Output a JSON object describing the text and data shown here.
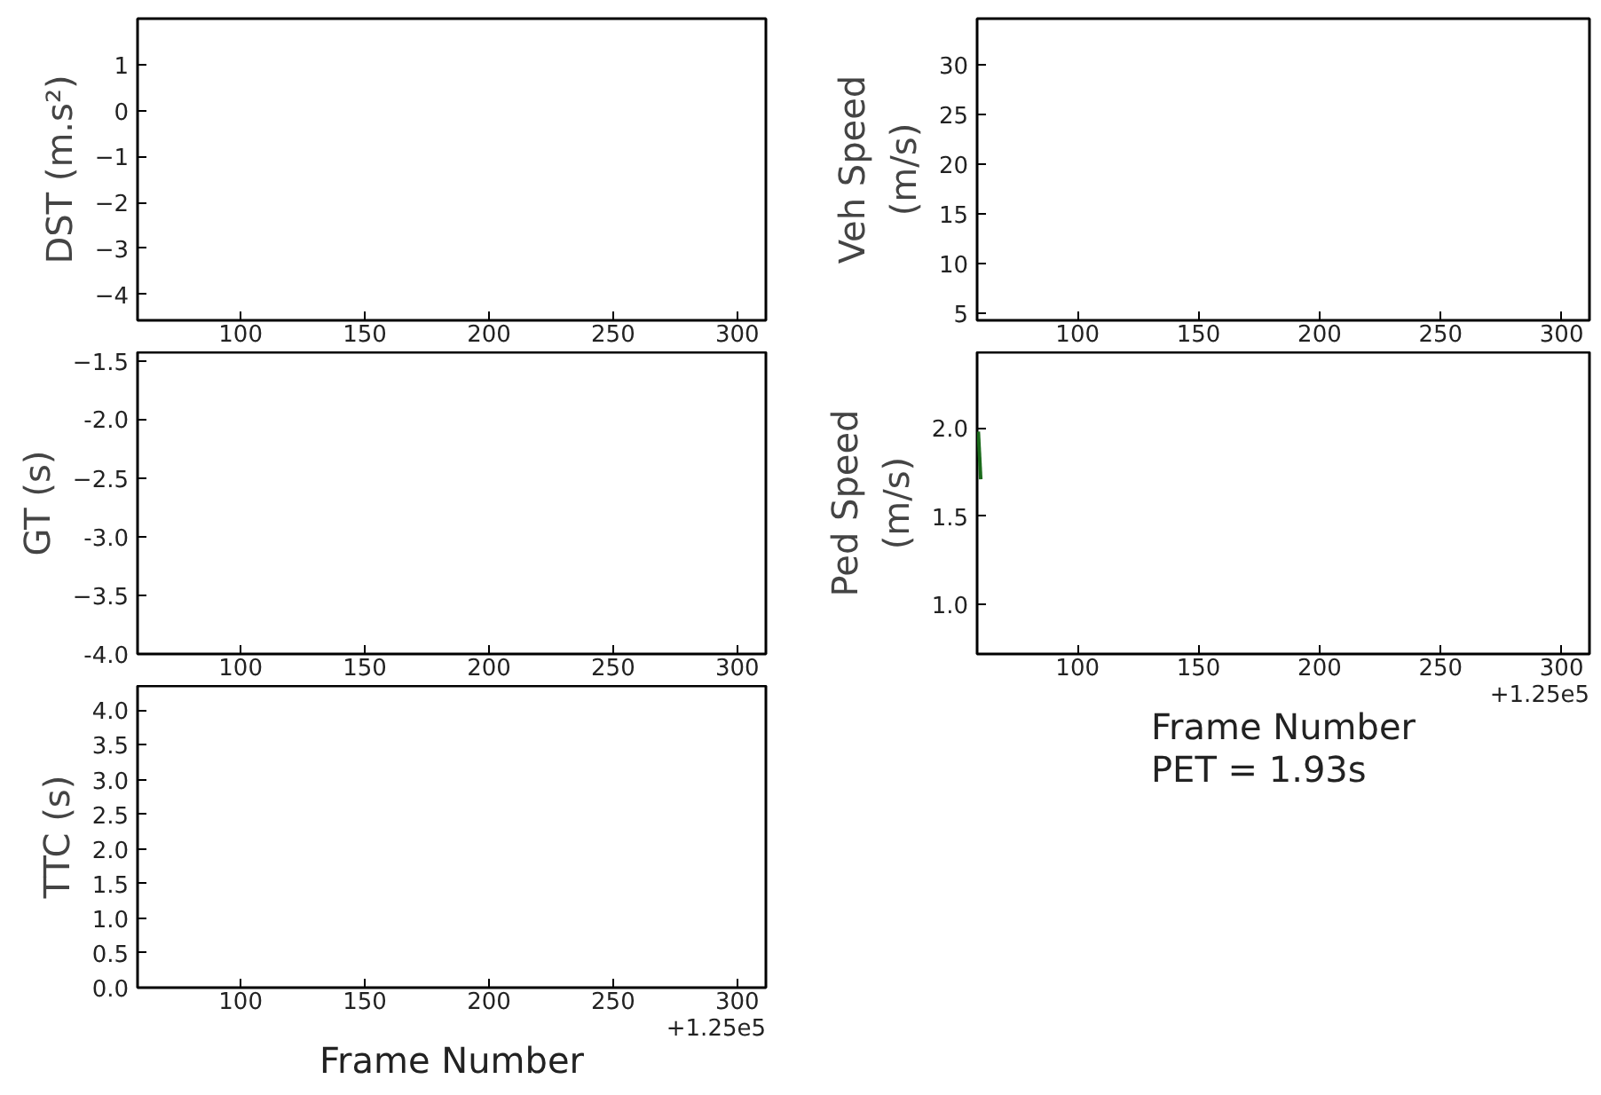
{
  "chart_data": [
    {
      "type": "line",
      "ylabel": "DST (m.s²)",
      "xlim": [
        58.5,
        311.5
      ],
      "ylim": [
        -4.57,
        2.0
      ],
      "xticks": [
        100,
        150,
        200,
        250,
        300
      ],
      "yticks": [
        -4,
        -3,
        -2,
        -1,
        0,
        1
      ],
      "grid": false
    },
    {
      "type": "line",
      "ylabel": "Veh Speed\n(m/s)",
      "xlim": [
        58.5,
        311.5
      ],
      "ylim": [
        4.25,
        34.7
      ],
      "xticks": [
        100,
        150,
        200,
        250,
        300
      ],
      "yticks": [
        5,
        10,
        15,
        20,
        25,
        30
      ],
      "grid": false
    },
    {
      "type": "line",
      "ylabel": "GT (s)",
      "xlim": [
        58.5,
        311.5
      ],
      "ylim": [
        -4.0,
        -1.43
      ],
      "xticks": [
        100,
        150,
        200,
        250,
        300
      ],
      "yticks": [
        {
          "value": -4.0,
          "label": "-4.0"
        },
        -3.5,
        {
          "value": -3.0,
          "label": "-3.0"
        },
        -2.5,
        {
          "value": -2.0,
          "label": "-2.0"
        },
        -1.5
      ],
      "grid": false
    },
    {
      "type": "line",
      "ylabel": "Ped Speed\n(m/s)",
      "xlabel": "Frame Number\nPET = 1.93s",
      "annotations": [
        "+1.25e5"
      ],
      "xlim": [
        58.5,
        311.5
      ],
      "ylim": [
        0.72,
        2.43
      ],
      "xticks": [
        100,
        150,
        200,
        250,
        300
      ],
      "yticks": [
        {
          "value": 1.0,
          "label": "1.0"
        },
        1.5,
        {
          "value": 2.0,
          "label": "2.0"
        }
      ],
      "grid": false,
      "series": [
        {
          "color": "#1b6b1b",
          "x": [
            59,
            60
          ],
          "values": [
            1.98,
            1.71
          ]
        }
      ]
    },
    {
      "type": "line",
      "ylabel": "TTC (s)",
      "xlabel": "Frame Number",
      "annotations": [
        "+1.25e5"
      ],
      "xlim": [
        58.5,
        311.5
      ],
      "ylim": [
        0,
        4.35
      ],
      "xticks": [
        100,
        150,
        200,
        250,
        300
      ],
      "yticks": [
        {
          "value": 0,
          "label": "0.0"
        },
        0.5,
        {
          "value": 1,
          "label": "1.0"
        },
        1.5,
        {
          "value": 2,
          "label": "2.0"
        },
        2.5,
        {
          "value": 3,
          "label": "3.0"
        },
        3.5,
        {
          "value": 4,
          "label": "4.0"
        }
      ],
      "grid": false
    }
  ]
}
